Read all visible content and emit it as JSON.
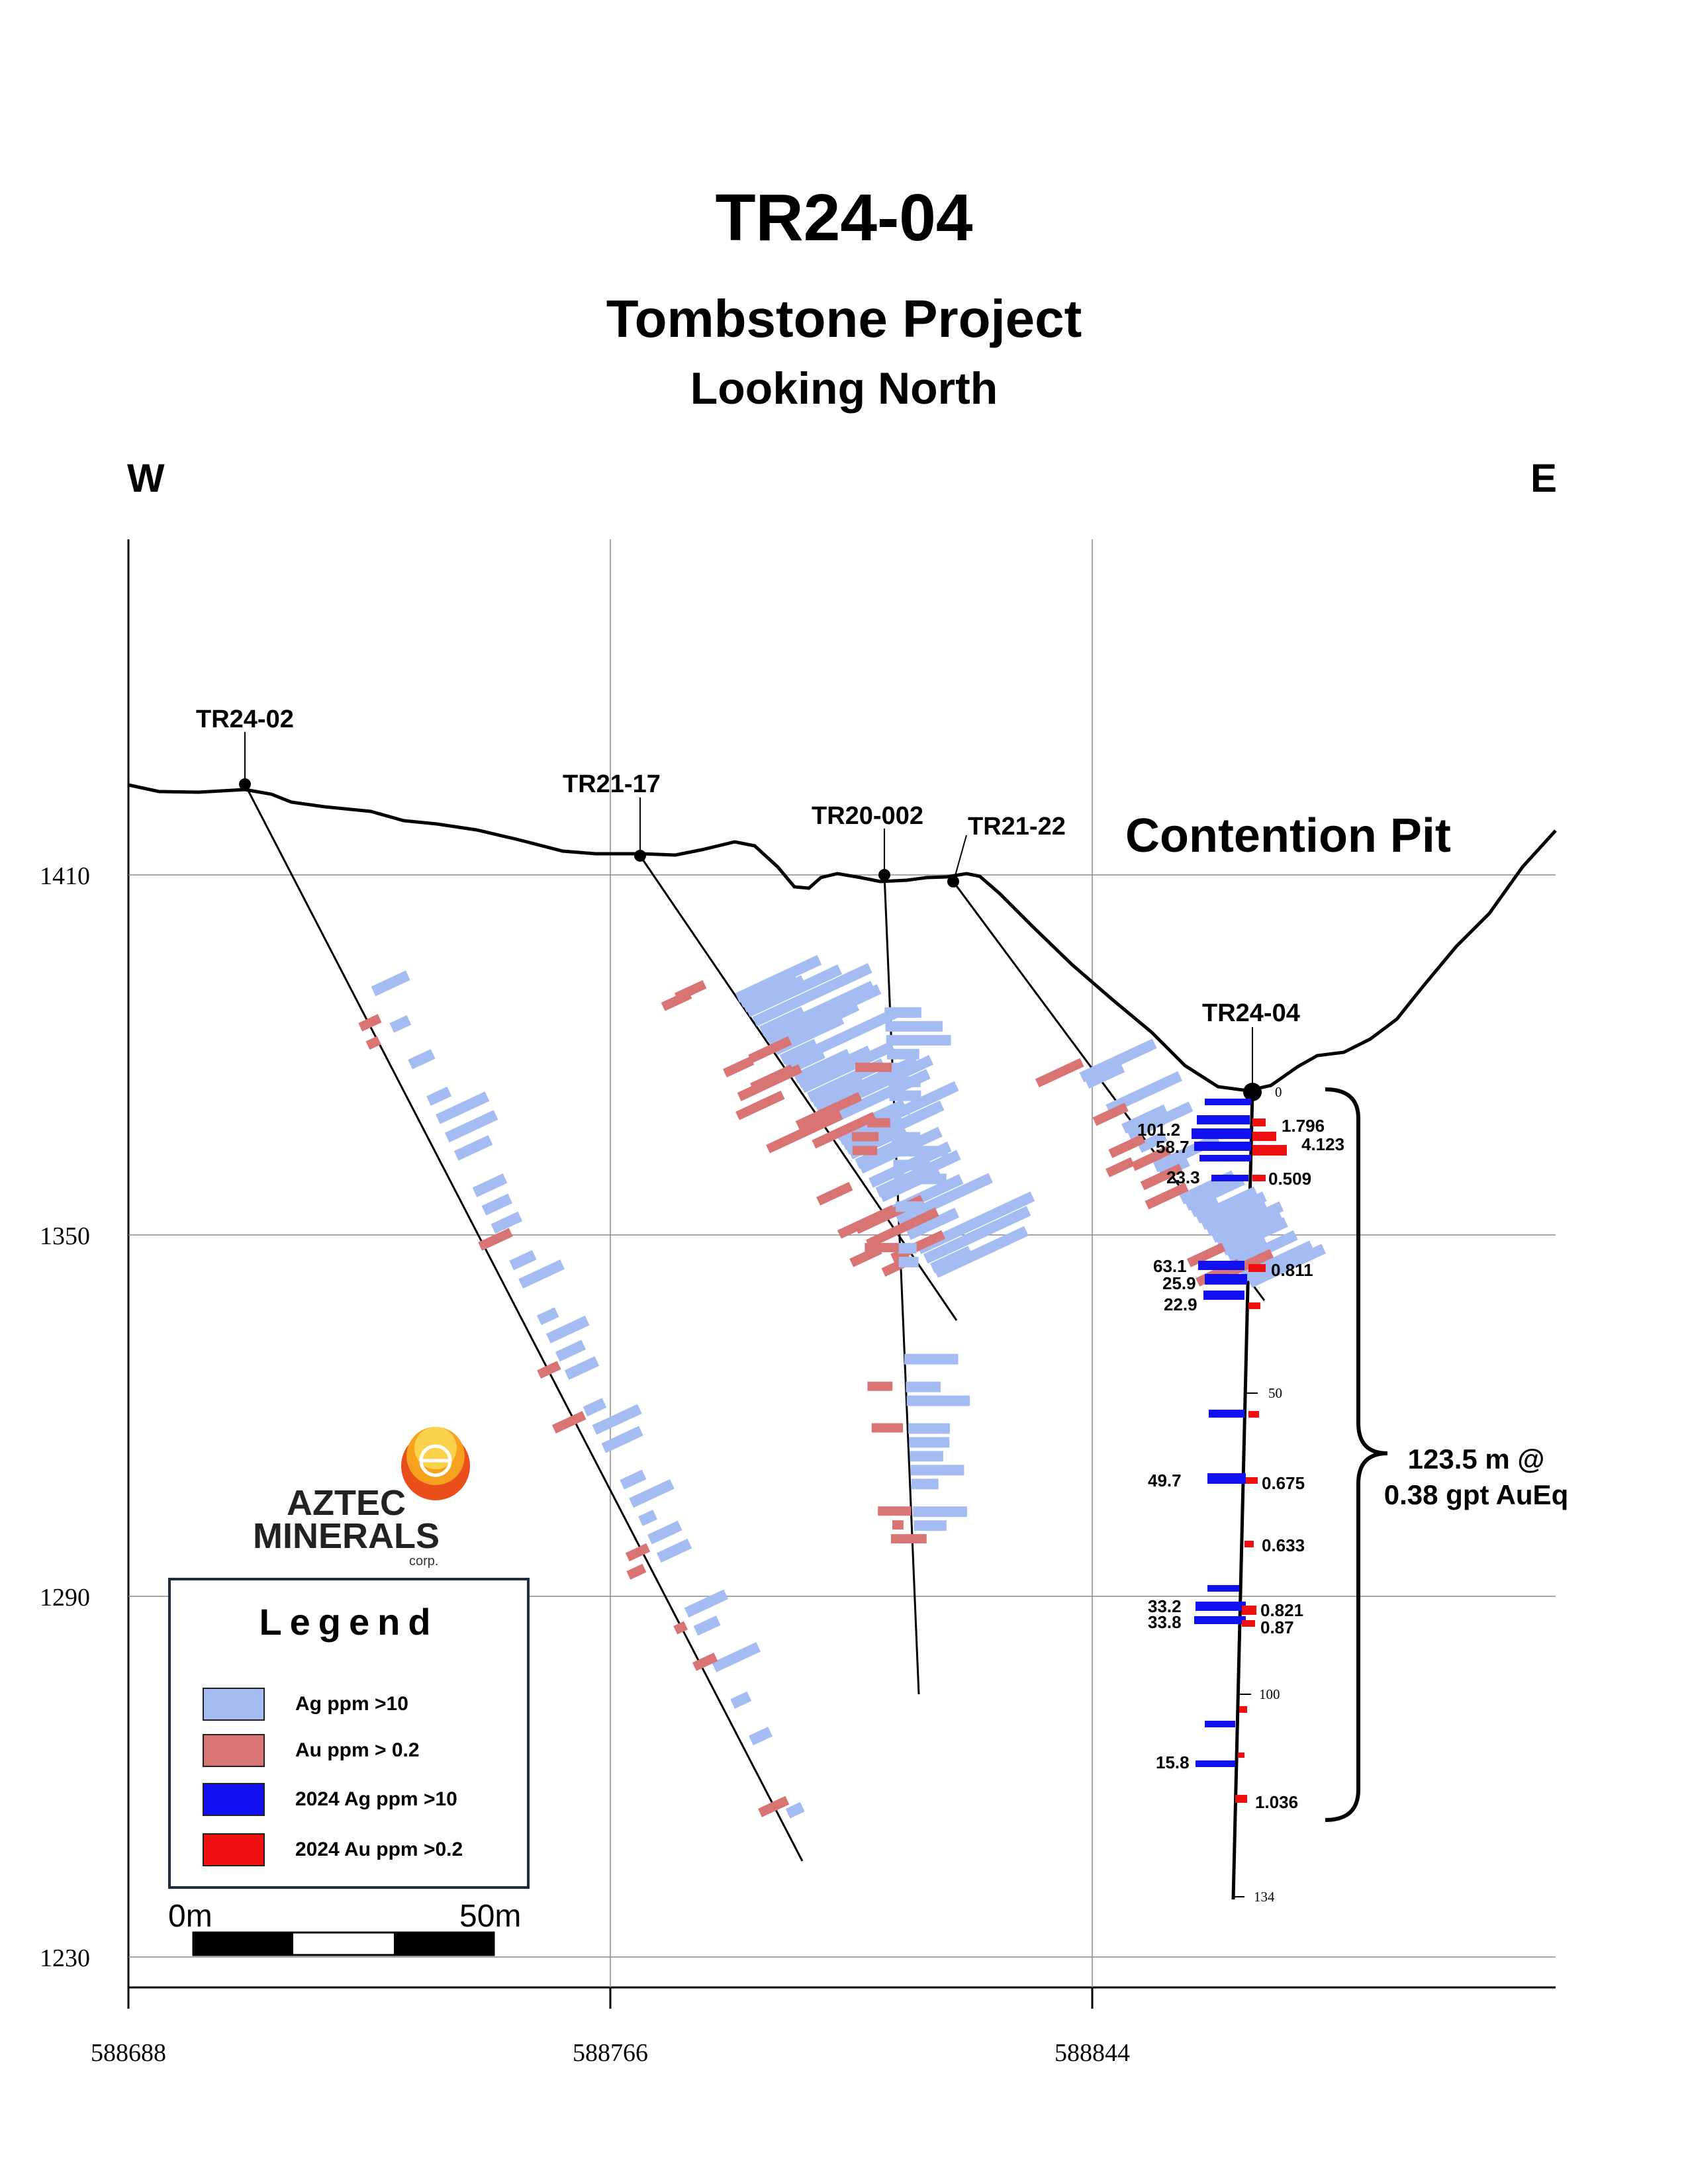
{
  "header": {
    "title": "TR24-04",
    "subtitle": "Tombstone Project",
    "view": "Looking North"
  },
  "directions": {
    "west": "W",
    "east": "E"
  },
  "axes": {
    "elevation_ticks": [
      "1410",
      "1350",
      "1290",
      "1230"
    ],
    "easting_ticks": [
      "588688",
      "588766",
      "588844"
    ]
  },
  "drillholes": [
    {
      "name": "TR24-02"
    },
    {
      "name": "TR21-17"
    },
    {
      "name": "TR20-002"
    },
    {
      "name": "TR21-22"
    },
    {
      "name": "TR24-04"
    }
  ],
  "pit_label": "Contention Pit",
  "tr24_04": {
    "depth_marks": [
      "0",
      "50",
      "100",
      "134"
    ],
    "ag_values": [
      "101.2",
      "58.7",
      "23.3",
      "63.1",
      "25.9",
      "22.9",
      "49.7",
      "33.2",
      "33.8",
      "15.8"
    ],
    "au_values": [
      "1.796",
      "4.123",
      "0.509",
      "0.811",
      "0.675",
      "0.633",
      "0.821",
      "0.87",
      "1.036"
    ],
    "interval": {
      "length": "123.5 m @",
      "grade": "0.38 gpt AuEq"
    }
  },
  "legend": {
    "title": "Legend",
    "items": [
      {
        "label": "Ag ppm >10",
        "color": "#a4bcf2"
      },
      {
        "label": "Au ppm > 0.2",
        "color": "#d87474"
      },
      {
        "label": "2024 Ag ppm >10",
        "color": "#1010f0"
      },
      {
        "label": "2024 Au ppm >0.2",
        "color": "#f01010"
      }
    ]
  },
  "scale": {
    "start": "0m",
    "end": "50m"
  },
  "logo": {
    "line1": "AZTEC",
    "line2": "MINERALS",
    "corp": "corp."
  }
}
